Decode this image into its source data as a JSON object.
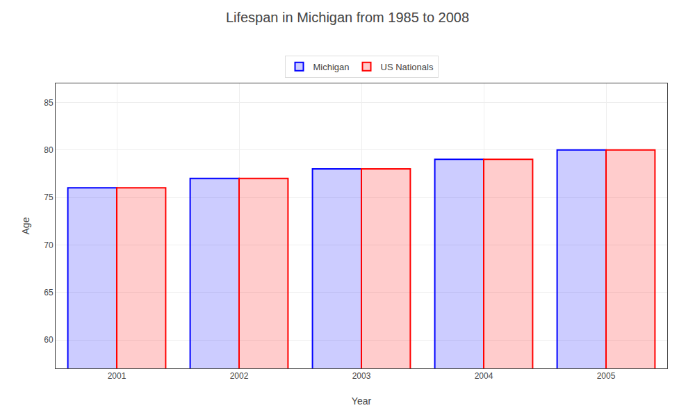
{
  "chart_data": {
    "type": "bar",
    "title": "Lifespan in Michigan from 1985 to 2008",
    "xlabel": "Year",
    "ylabel": "Age",
    "categories": [
      "2001",
      "2002",
      "2003",
      "2004",
      "2005"
    ],
    "series": [
      {
        "name": "Michigan",
        "color": "#0000ff",
        "values": [
          76.0,
          77.0,
          78.0,
          79.0,
          80.0
        ]
      },
      {
        "name": "US Nationals",
        "color": "#ff0000",
        "values": [
          76.0,
          77.0,
          78.0,
          79.0,
          80.0
        ]
      }
    ],
    "ylim": [
      57,
      87
    ],
    "yticks": [
      60,
      65,
      70,
      75,
      80,
      85
    ],
    "grid": true,
    "legend": "top"
  }
}
